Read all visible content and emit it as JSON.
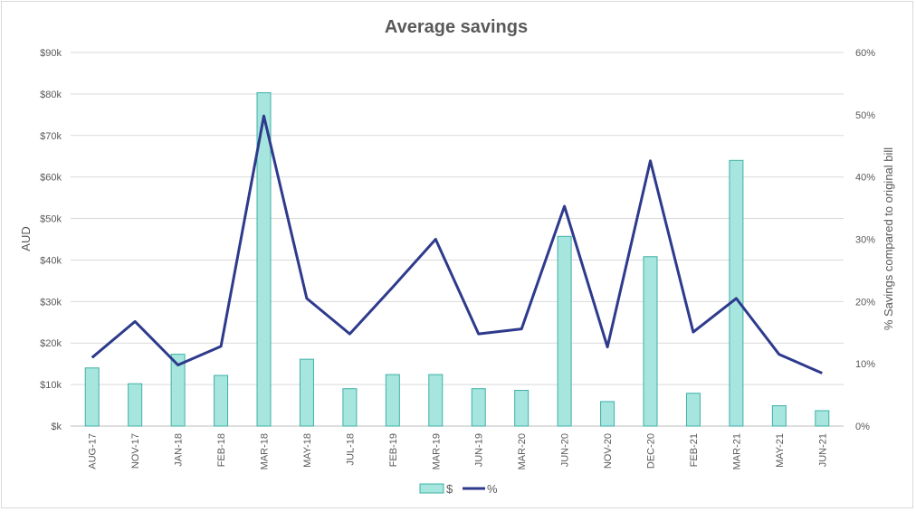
{
  "chart_data": {
    "type": "bar+line",
    "title": "Average savings",
    "ylabel": "AUD",
    "y2label": "% Savings compared to original bill",
    "categories": [
      "AUG-17",
      "NOV-17",
      "JAN-18",
      "FEB-18",
      "MAR-18",
      "MAY-18",
      "JUL-18",
      "FEB-19",
      "MAR-19",
      "JUN-19",
      "MAR-20",
      "JUN-20",
      "NOV-20",
      "DEC-20",
      "FEB-21",
      "MAR-21",
      "MAY-21",
      "JUN-21"
    ],
    "ylim": [
      0,
      90000
    ],
    "y2lim": [
      0,
      60
    ],
    "y_ticks": [
      "$k",
      "$10k",
      "$20k",
      "$30k",
      "$40k",
      "$50k",
      "$60k",
      "$70k",
      "$80k",
      "$90k"
    ],
    "y2_ticks": [
      "0%",
      "10%",
      "20%",
      "30%",
      "40%",
      "50%",
      "60%"
    ],
    "series": [
      {
        "name": "$",
        "type": "bar",
        "axis": "left",
        "color": "#a6e6df",
        "stroke": "#3fb0a6",
        "values": [
          14000,
          10200,
          17300,
          12200,
          80300,
          16100,
          9000,
          12400,
          12400,
          9000,
          8600,
          45700,
          5900,
          40800,
          7900,
          64000,
          4900,
          3700
        ]
      },
      {
        "name": "%",
        "type": "line",
        "axis": "right",
        "color": "#2e3a8c",
        "values": [
          11,
          16.8,
          9.8,
          12.8,
          49.8,
          20.5,
          14.8,
          22.3,
          30,
          14.8,
          15.6,
          35.3,
          12.7,
          42.6,
          15.1,
          20.5,
          11.5,
          8.5
        ]
      }
    ],
    "grid": true,
    "legend": "bottom"
  }
}
